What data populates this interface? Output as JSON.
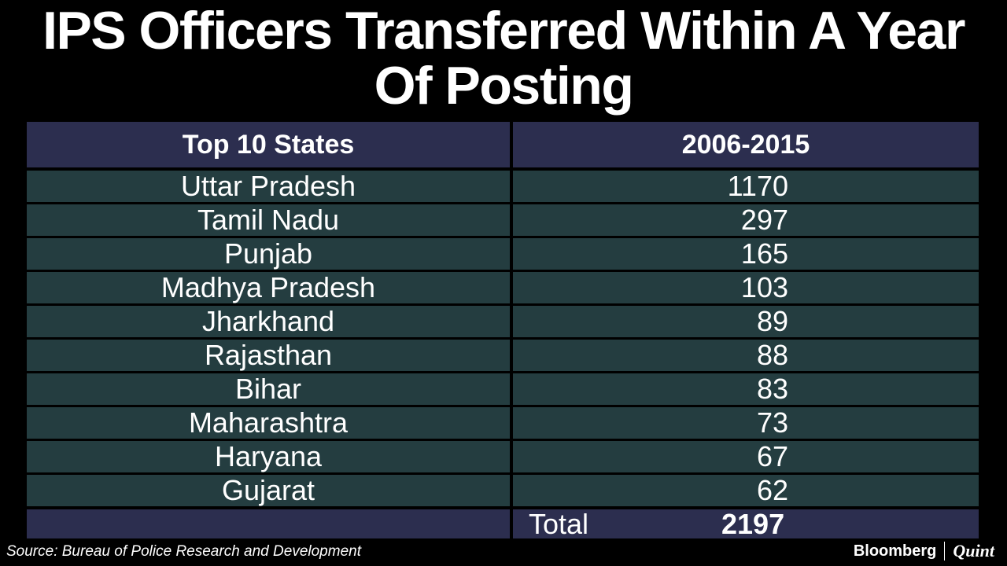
{
  "title": "IPS Officers Transferred Within A Year Of Posting",
  "chart_data": {
    "type": "table",
    "columns": [
      "Top 10 States",
      "2006-2015"
    ],
    "rows": [
      {
        "state": "Uttar Pradesh",
        "value": 1170
      },
      {
        "state": "Tamil Nadu",
        "value": 297
      },
      {
        "state": "Punjab",
        "value": 165
      },
      {
        "state": "Madhya Pradesh",
        "value": 103
      },
      {
        "state": "Jharkhand",
        "value": 89
      },
      {
        "state": "Rajasthan",
        "value": 88
      },
      {
        "state": "Bihar",
        "value": 83
      },
      {
        "state": "Maharashtra",
        "value": 73
      },
      {
        "state": "Haryana",
        "value": 67
      },
      {
        "state": "Gujarat",
        "value": 62
      }
    ],
    "total_label": "Total",
    "total_value": 2197
  },
  "footer": {
    "source": "Source: Bureau of Police Research and Development",
    "brand_a": "Bloomberg",
    "brand_b": "Quint"
  },
  "colors": {
    "background": "#000000",
    "header_fill": "#2c2e4f",
    "row_fill": "#243d40",
    "text": "#ffffff"
  }
}
